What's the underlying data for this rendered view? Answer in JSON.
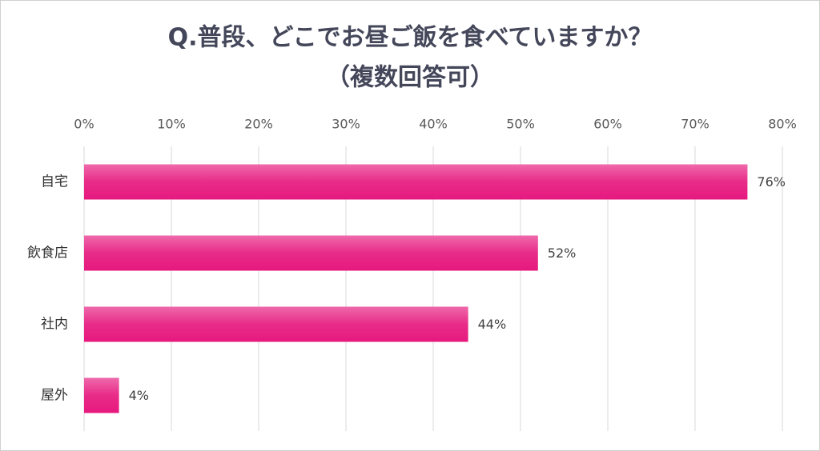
{
  "chart_data": {
    "type": "barh",
    "title": "Q.普段、どこでお昼ご飯を食べていますか？",
    "subtitle": "（複数回答可）",
    "categories": [
      "自宅",
      "飲食店",
      "社内",
      "屋外"
    ],
    "values": [
      76,
      52,
      44,
      4
    ],
    "value_labels": [
      "76%",
      "52%",
      "44%",
      "4%"
    ],
    "color": "#e6197e",
    "xlim": [
      0,
      80
    ],
    "xticks": [
      {
        "value": 0,
        "label": "0%"
      },
      {
        "value": 10,
        "label": "10%"
      },
      {
        "value": 20,
        "label": "20%"
      },
      {
        "value": 30,
        "label": "30%"
      },
      {
        "value": 40,
        "label": "40%"
      },
      {
        "value": 50,
        "label": "50%"
      },
      {
        "value": 60,
        "label": "60%"
      },
      {
        "value": 70,
        "label": "70%"
      },
      {
        "value": 80,
        "label": "80%"
      }
    ],
    "grid": true
  }
}
